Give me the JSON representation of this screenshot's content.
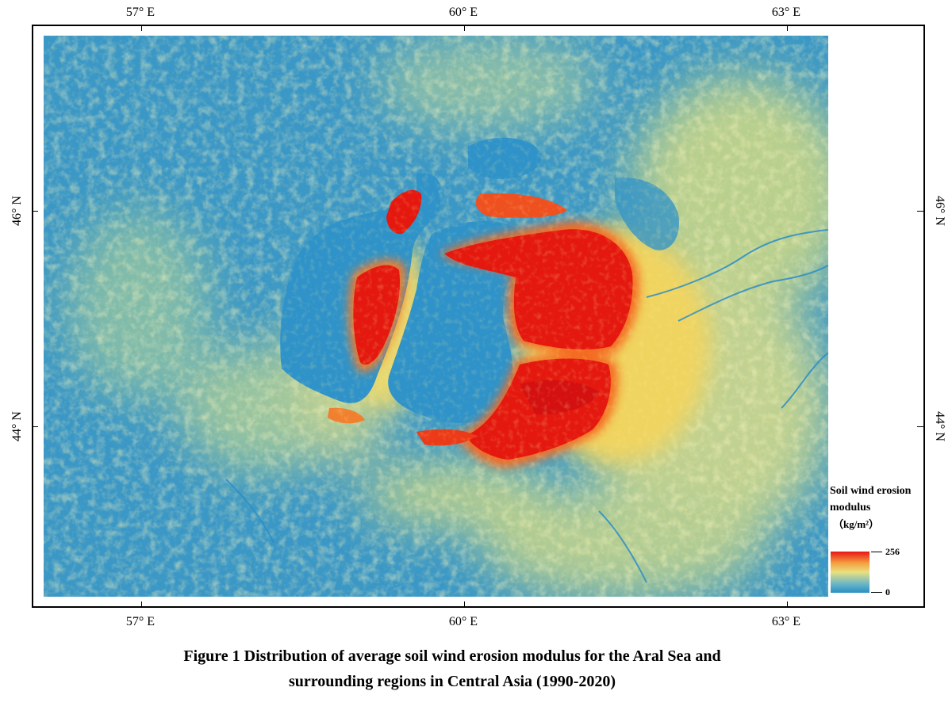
{
  "map": {
    "lon_labels": [
      "57° E",
      "60° E",
      "63° E"
    ],
    "lat_labels": [
      "46° N",
      "44° N"
    ]
  },
  "legend": {
    "title_line1": "Soil wind erosion",
    "title_line2": "modulus",
    "unit": "（kg/m²）",
    "max": "256",
    "min": "0",
    "colors": {
      "low": "#2a8fc4",
      "mid": "#e8e080",
      "high": "#e81616"
    }
  },
  "caption": {
    "line1": "Figure 1  Distribution of average soil wind erosion modulus for the Aral Sea and",
    "line2": "surrounding regions in Central Asia (1990-2020)"
  }
}
